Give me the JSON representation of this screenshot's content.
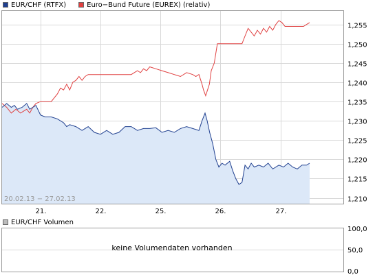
{
  "legend": {
    "eurchf": {
      "label": "EUR/CHF (RTFX)",
      "color": "#1f3f8f"
    },
    "bund": {
      "label": "Euro−Bund Future (EUREX) (relativ)",
      "color": "#e04040"
    }
  },
  "date_range_label": "20.02.13 − 27.02.13",
  "volume": {
    "legend_label": "EUR/CHF Volumen",
    "no_data_text": "keine Volumendaten vorhanden",
    "y_ticks": [
      "100,0",
      "50,0",
      "0,0"
    ]
  },
  "colors": {
    "area_fill": "#dce8f8",
    "grid": "#d8d8d8",
    "eurchf_line": "#1f3f8f",
    "bund_line": "#e04040"
  },
  "chart_data": {
    "type": "line",
    "x_tick_labels": [
      "21.",
      "22.",
      "25.",
      "26.",
      "27."
    ],
    "y_tick_labels": [
      "1,255",
      "1,250",
      "1,245",
      "1,240",
      "1,235",
      "1,230",
      "1,225",
      "1,220",
      "1,215",
      "1,210"
    ],
    "ylim": [
      1.2085,
      1.2585
    ],
    "xlim": [
      0,
      100
    ],
    "x_tick_positions": [
      12.5,
      32,
      51.5,
      71,
      90.5
    ],
    "series": [
      {
        "name": "EUR/CHF (RTFX)",
        "style": "area",
        "x": [
          0,
          1.5,
          3,
          4,
          5,
          6.5,
          8,
          9,
          10,
          11,
          12.5,
          14,
          16,
          18,
          20,
          21,
          22,
          24,
          26,
          28,
          30,
          32,
          34,
          36,
          38,
          40,
          42,
          44,
          46,
          48,
          50,
          52,
          54,
          56,
          58,
          60,
          62,
          64,
          65,
          66,
          66.7,
          67.5,
          68.5,
          69.5,
          70.5,
          71.5,
          72.5,
          74,
          75,
          76,
          77,
          78,
          79,
          80,
          81,
          82,
          83.5,
          85,
          86.5,
          88,
          90,
          91.5,
          93,
          94.5,
          96,
          97.5,
          99,
          100
        ],
        "y": [
          1.2335,
          1.2345,
          1.2335,
          1.234,
          1.233,
          1.2335,
          1.2345,
          1.233,
          1.2335,
          1.234,
          1.2315,
          1.231,
          1.231,
          1.2305,
          1.2295,
          1.2285,
          1.229,
          1.2285,
          1.2275,
          1.2285,
          1.227,
          1.2265,
          1.2275,
          1.2265,
          1.227,
          1.2285,
          1.2285,
          1.2275,
          1.228,
          1.228,
          1.2282,
          1.227,
          1.2275,
          1.227,
          1.228,
          1.2285,
          1.228,
          1.2275,
          1.23,
          1.232,
          1.23,
          1.227,
          1.224,
          1.22,
          1.218,
          1.219,
          1.2185,
          1.2195,
          1.217,
          1.215,
          1.2135,
          1.214,
          1.2185,
          1.2175,
          1.219,
          1.218,
          1.2185,
          1.218,
          1.219,
          1.2175,
          1.2185,
          1.218,
          1.219,
          1.218,
          1.2175,
          1.2185,
          1.2185,
          1.219
        ]
      },
      {
        "name": "Euro−Bund Future (EUREX) (relativ)",
        "style": "line",
        "x": [
          0,
          1.5,
          3,
          4.5,
          6,
          7,
          8,
          9,
          10,
          11,
          12.5,
          14,
          16,
          18,
          19,
          20,
          21,
          22,
          23,
          24,
          25,
          26,
          27,
          28,
          30,
          32,
          34,
          36,
          38,
          40,
          42,
          44,
          45,
          46,
          47,
          48,
          50,
          52,
          54,
          56,
          58,
          60,
          62,
          63,
          64,
          65,
          65.5,
          66.2,
          66.8,
          67.4,
          68,
          69,
          70,
          71,
          72,
          74,
          76,
          78,
          79,
          80,
          81,
          82,
          83,
          84,
          85,
          86,
          87,
          88,
          89,
          90,
          91,
          92,
          94,
          96,
          97,
          98,
          99,
          100
        ],
        "y": [
          1.2345,
          1.2335,
          1.232,
          1.233,
          1.232,
          1.2325,
          1.233,
          1.232,
          1.2335,
          1.2345,
          1.235,
          1.235,
          1.235,
          1.237,
          1.2385,
          1.238,
          1.2395,
          1.238,
          1.24,
          1.2405,
          1.2415,
          1.2405,
          1.2415,
          1.242,
          1.242,
          1.242,
          1.242,
          1.242,
          1.242,
          1.242,
          1.242,
          1.243,
          1.2425,
          1.2435,
          1.243,
          1.244,
          1.2435,
          1.243,
          1.2425,
          1.242,
          1.2415,
          1.2425,
          1.242,
          1.2415,
          1.242,
          1.2395,
          1.238,
          1.2365,
          1.238,
          1.2395,
          1.243,
          1.245,
          1.25,
          1.25,
          1.25,
          1.25,
          1.25,
          1.25,
          1.252,
          1.254,
          1.253,
          1.252,
          1.2535,
          1.2525,
          1.254,
          1.253,
          1.2545,
          1.2535,
          1.255,
          1.256,
          1.2555,
          1.2545,
          1.2545,
          1.2545,
          1.2545,
          1.2545,
          1.255,
          1.2555
        ]
      }
    ]
  }
}
